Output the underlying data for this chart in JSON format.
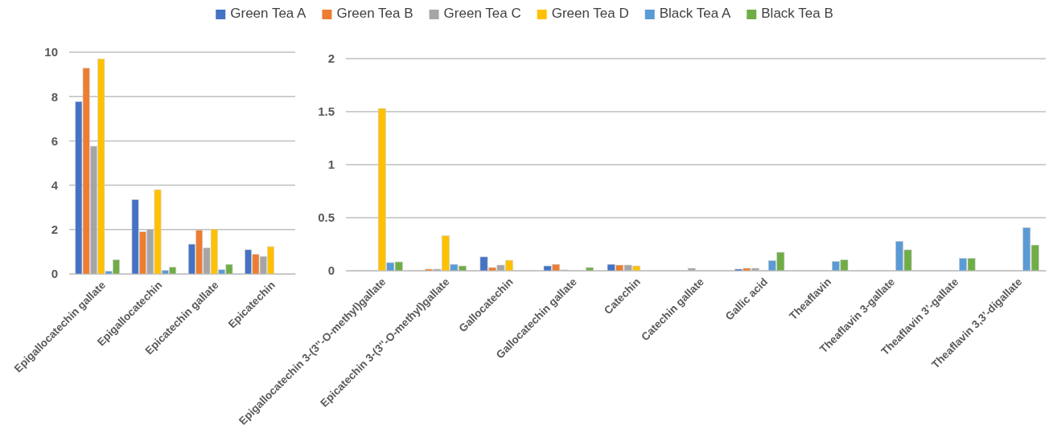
{
  "chart_data": [
    {
      "type": "bar",
      "categories": [
        "Epigallocatechin gallate",
        "Epigallocatechin",
        "Epicatechin gallate",
        "Epicatechin"
      ],
      "series": [
        {
          "name": "Green Tea A",
          "color": "#4472c4",
          "values": [
            7.77,
            3.35,
            1.34,
            1.09
          ]
        },
        {
          "name": "Green Tea B",
          "color": "#ed7d31",
          "values": [
            9.28,
            1.9,
            1.97,
            0.88
          ]
        },
        {
          "name": "Green Tea C",
          "color": "#a5a5a5",
          "values": [
            5.76,
            2.02,
            1.17,
            0.79
          ]
        },
        {
          "name": "Green Tea D",
          "color": "#ffc000",
          "values": [
            9.7,
            3.8,
            2.02,
            1.23
          ]
        },
        {
          "name": "Black Tea A",
          "color": "#5b9bd5",
          "values": [
            0.12,
            0.16,
            0.19,
            null
          ]
        },
        {
          "name": "Black Tea B",
          "color": "#70ad47",
          "values": [
            0.64,
            0.3,
            0.43,
            null
          ]
        }
      ],
      "ylim": [
        0,
        10
      ],
      "yticks": [
        0,
        2,
        4,
        6,
        8,
        10
      ],
      "grid": "y",
      "legend": "top"
    },
    {
      "type": "bar",
      "categories": [
        "Epigallocatechin 3-(3''-O-methyl)gallate",
        "Epicatechin 3-(3''-O-methyl)gallate",
        "Gallocatechin",
        "Gallocatechin gallate",
        "Catechin",
        "Catechin gallate",
        "Gallic acid",
        "Theaflavin",
        "Theaflavin 3-gallate",
        "Theaflavin 3’-gallate",
        "Theaflavin 3,3’-digallate"
      ],
      "series": [
        {
          "color": "#4472c4",
          "values": [
            null,
            null,
            0.13,
            0.045,
            0.06,
            null,
            0.015,
            null,
            null,
            null,
            null
          ]
        },
        {
          "color": "#ed7d31",
          "values": [
            null,
            0.015,
            0.03,
            0.06,
            0.053,
            null,
            0.023,
            null,
            null,
            null,
            null
          ]
        },
        {
          "color": "#a5a5a5",
          "values": [
            null,
            0.015,
            0.053,
            0.008,
            0.053,
            0.023,
            0.023,
            null,
            null,
            null,
            null
          ]
        },
        {
          "color": "#ffc000",
          "values": [
            1.53,
            0.33,
            0.098,
            null,
            0.045,
            null,
            null,
            null,
            null,
            null,
            null
          ]
        },
        {
          "color": "#5b9bd5",
          "values": [
            0.076,
            0.06,
            null,
            null,
            null,
            null,
            0.096,
            0.088,
            0.277,
            0.116,
            0.406
          ]
        },
        {
          "color": "#70ad47",
          "values": [
            0.083,
            0.045,
            null,
            0.03,
            null,
            null,
            0.174,
            0.103,
            0.197,
            0.116,
            0.242
          ]
        }
      ],
      "ylim": [
        0,
        2
      ],
      "yticks": [
        0,
        0.5,
        1,
        1.5,
        2
      ],
      "grid": "y"
    }
  ]
}
